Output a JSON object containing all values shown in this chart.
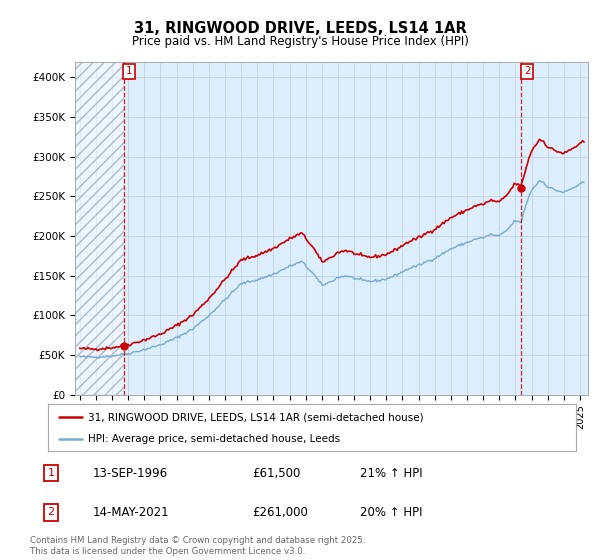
{
  "title": "31, RINGWOOD DRIVE, LEEDS, LS14 1AR",
  "subtitle": "Price paid vs. HM Land Registry's House Price Index (HPI)",
  "property_color": "#cc0000",
  "hpi_color": "#7aaad0",
  "bg_color": "#ddeeff",
  "hatch_color": "#bbccdd",
  "marker1_date": 1996.71,
  "marker1_price": 61500,
  "marker1_label": "13-SEP-1996",
  "marker1_pct": "21% ↑ HPI",
  "marker2_date": 2021.37,
  "marker2_price": 261000,
  "marker2_label": "14-MAY-2021",
  "marker2_pct": "20% ↑ HPI",
  "legend_property": "31, RINGWOOD DRIVE, LEEDS, LS14 1AR (semi-detached house)",
  "legend_hpi": "HPI: Average price, semi-detached house, Leeds",
  "footer": "Contains HM Land Registry data © Crown copyright and database right 2025.\nThis data is licensed under the Open Government Licence v3.0.",
  "xlim_start": 1993.7,
  "xlim_end": 2025.5,
  "ylim": [
    0,
    420000
  ],
  "yticks": [
    0,
    50000,
    100000,
    150000,
    200000,
    250000,
    300000,
    350000,
    400000
  ],
  "ytick_labels": [
    "£0",
    "£50K",
    "£100K",
    "£150K",
    "£200K",
    "£250K",
    "£300K",
    "£350K",
    "£400K"
  ]
}
